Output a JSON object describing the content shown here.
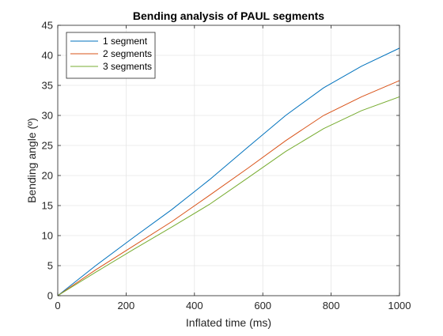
{
  "chart_data": {
    "type": "line",
    "title": "Bending analysis of PAUL segments",
    "xlabel": "Inflated time (ms)",
    "ylabel": "Bending angle (º)",
    "xlim": [
      0,
      1000
    ],
    "ylim": [
      0,
      45
    ],
    "xticks": [
      0,
      200,
      400,
      600,
      800,
      1000
    ],
    "yticks": [
      0,
      5,
      10,
      15,
      20,
      25,
      30,
      35,
      40,
      45
    ],
    "grid": true,
    "legend_position": "top-left",
    "x": [
      0,
      111,
      222,
      333,
      444,
      556,
      667,
      778,
      889,
      1000
    ],
    "series": [
      {
        "name": "1 segment",
        "color": "#0072BD",
        "values": [
          0,
          5.0,
          9.7,
          14.3,
          19.3,
          24.7,
          30.0,
          34.6,
          38.2,
          41.2
        ]
      },
      {
        "name": "2 segments",
        "color": "#D95319",
        "values": [
          0,
          4.3,
          8.3,
          12.3,
          16.7,
          21.2,
          25.8,
          30.0,
          33.1,
          35.8
        ]
      },
      {
        "name": "3 segments",
        "color": "#77AC30",
        "values": [
          0,
          3.9,
          7.7,
          11.4,
          15.2,
          19.6,
          24.0,
          27.8,
          30.8,
          33.1
        ]
      }
    ]
  }
}
